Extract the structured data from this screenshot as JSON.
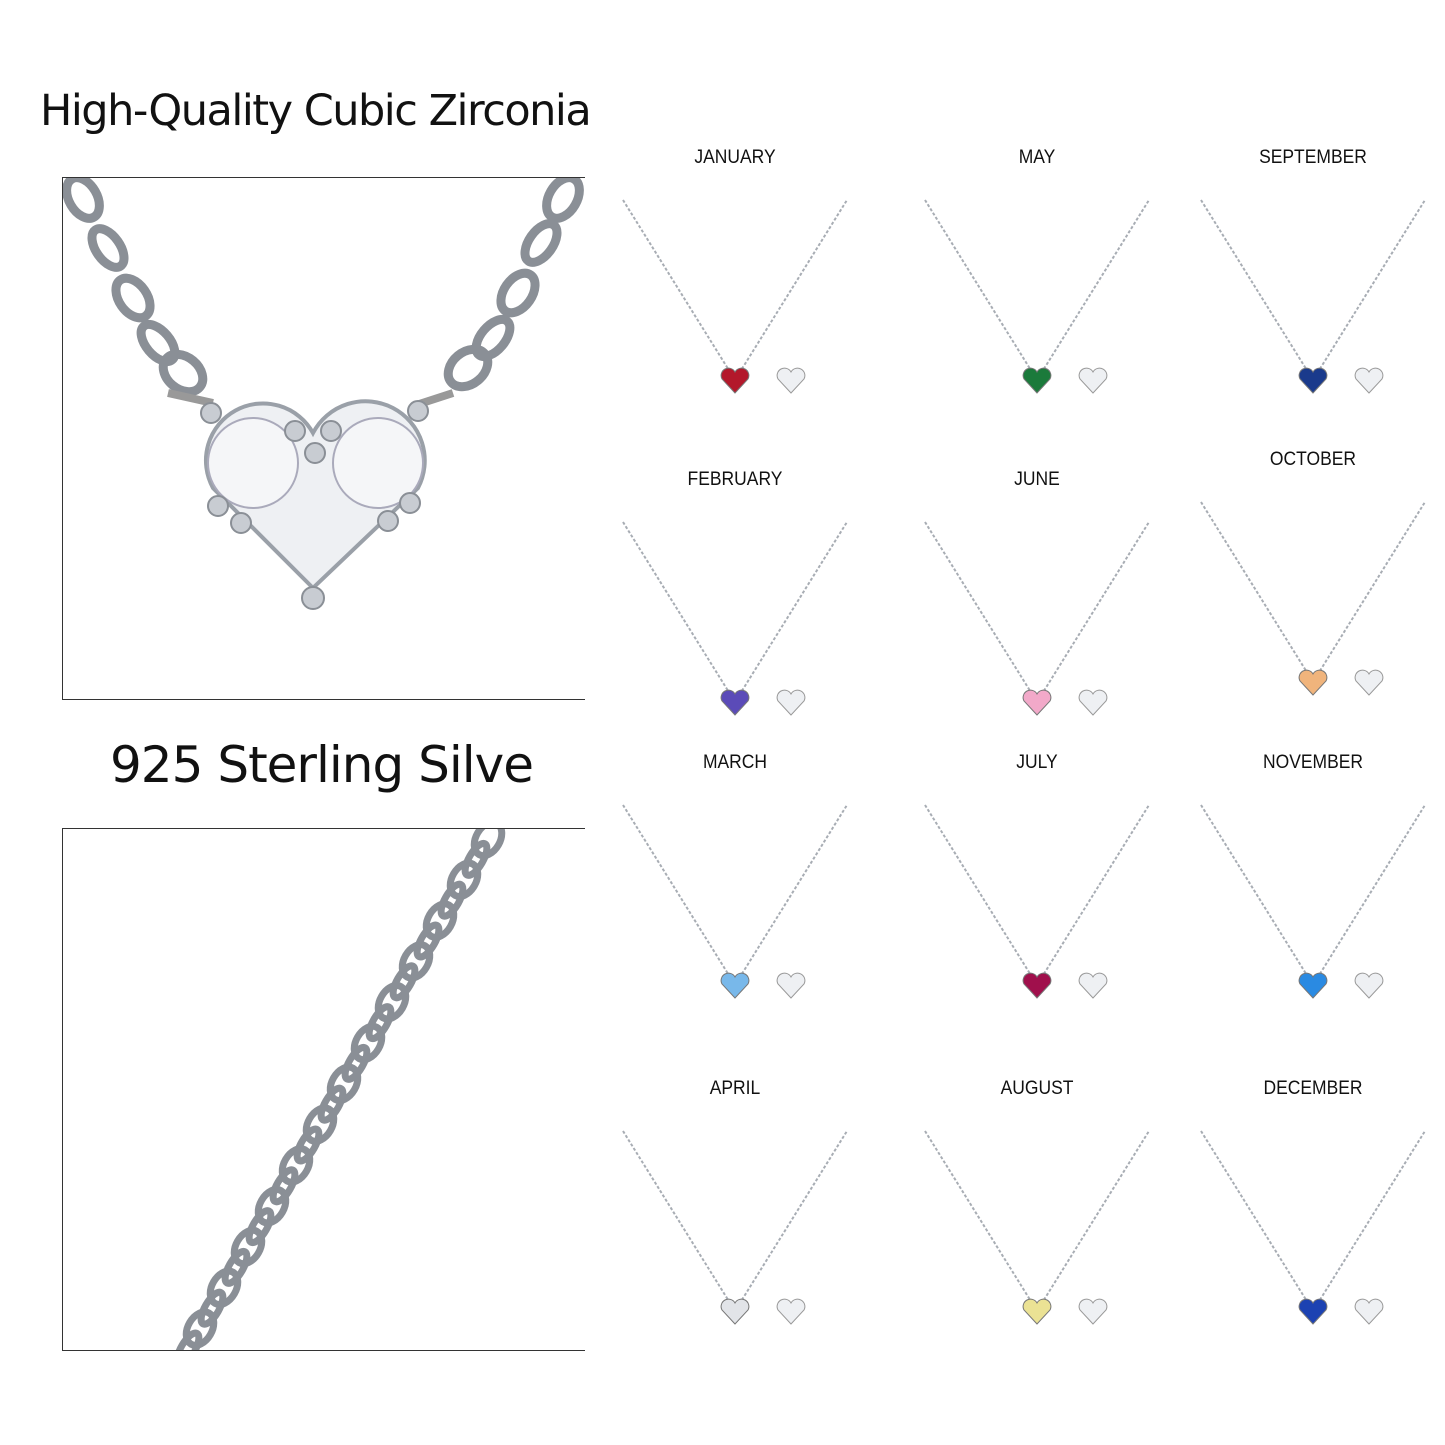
{
  "headings": {
    "cubic_zirconia": "High-Quality Cubic Zirconia",
    "sterling_silver": "925 Sterling Silve"
  },
  "months": [
    {
      "label": "JANUARY",
      "stone_color": "#b3182b"
    },
    {
      "label": "MAY",
      "stone_color": "#1b7a3b"
    },
    {
      "label": "SEPTEMBER",
      "stone_color": "#1a3a8c"
    },
    {
      "label": "FEBRUARY",
      "stone_color": "#5b4bb8"
    },
    {
      "label": "JUNE",
      "stone_color": "#f2a9c9"
    },
    {
      "label": "OCTOBER",
      "stone_color": "#f0b47c"
    },
    {
      "label": "MARCH",
      "stone_color": "#78b8ea"
    },
    {
      "label": "JULY",
      "stone_color": "#a0104c"
    },
    {
      "label": "NOVEMBER",
      "stone_color": "#2a8ae2"
    },
    {
      "label": "APRIL",
      "stone_color": "#e2e4e8"
    },
    {
      "label": "AUGUST",
      "stone_color": "#ebe294"
    },
    {
      "label": "DECEMBER",
      "stone_color": "#1c42b2"
    }
  ]
}
